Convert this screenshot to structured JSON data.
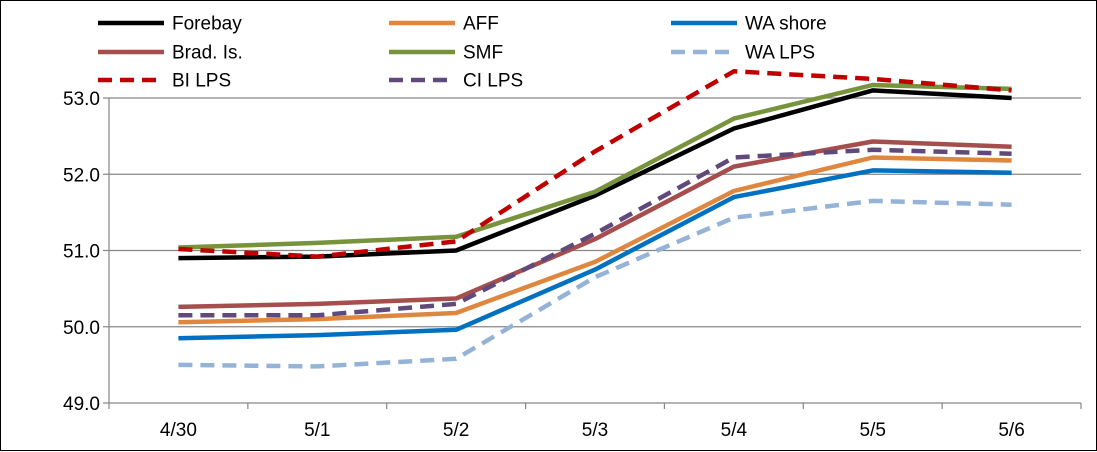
{
  "chart_data": {
    "type": "line",
    "title": "",
    "xlabel": "",
    "ylabel": "",
    "categories": [
      "4/30",
      "5/1",
      "5/2",
      "5/3",
      "5/4",
      "5/5",
      "5/6"
    ],
    "ylim": [
      49.0,
      53.0
    ],
    "y_ticks": [
      "49.0",
      "50.0",
      "51.0",
      "52.0",
      "53.0"
    ],
    "grid": "horizontal",
    "legend_position": "top-left",
    "series": [
      {
        "name": "Forebay",
        "color": "#000000",
        "dash": "solid",
        "values": [
          50.9,
          50.92,
          51.0,
          51.72,
          52.6,
          53.1,
          53.0
        ]
      },
      {
        "name": "AFF",
        "color": "#E0873F",
        "dash": "solid",
        "values": [
          50.06,
          50.1,
          50.18,
          50.85,
          51.78,
          52.22,
          52.18
        ]
      },
      {
        "name": "WA shore",
        "color": "#0070C0",
        "dash": "solid",
        "values": [
          49.85,
          49.89,
          49.96,
          50.75,
          51.7,
          52.05,
          52.02
        ]
      },
      {
        "name": "Brad. Is.",
        "color": "#A64D4D",
        "dash": "solid",
        "values": [
          50.26,
          50.3,
          50.37,
          51.15,
          52.1,
          52.43,
          52.36
        ]
      },
      {
        "name": "SMF",
        "color": "#77933C",
        "dash": "solid",
        "values": [
          51.04,
          51.1,
          51.18,
          51.77,
          52.73,
          53.17,
          53.12
        ]
      },
      {
        "name": "WA LPS",
        "color": "#95B3D7",
        "dash": "dashed",
        "values": [
          49.5,
          49.48,
          49.58,
          50.65,
          51.43,
          51.65,
          51.6
        ]
      },
      {
        "name": "BI LPS",
        "color": "#C00000",
        "dash": "dashed",
        "values": [
          51.02,
          50.92,
          51.12,
          52.3,
          53.35,
          53.25,
          53.1
        ]
      },
      {
        "name": "CI LPS",
        "color": "#604A7B",
        "dash": "dashed",
        "values": [
          50.15,
          50.15,
          50.3,
          51.22,
          52.22,
          52.32,
          52.27
        ]
      }
    ]
  }
}
